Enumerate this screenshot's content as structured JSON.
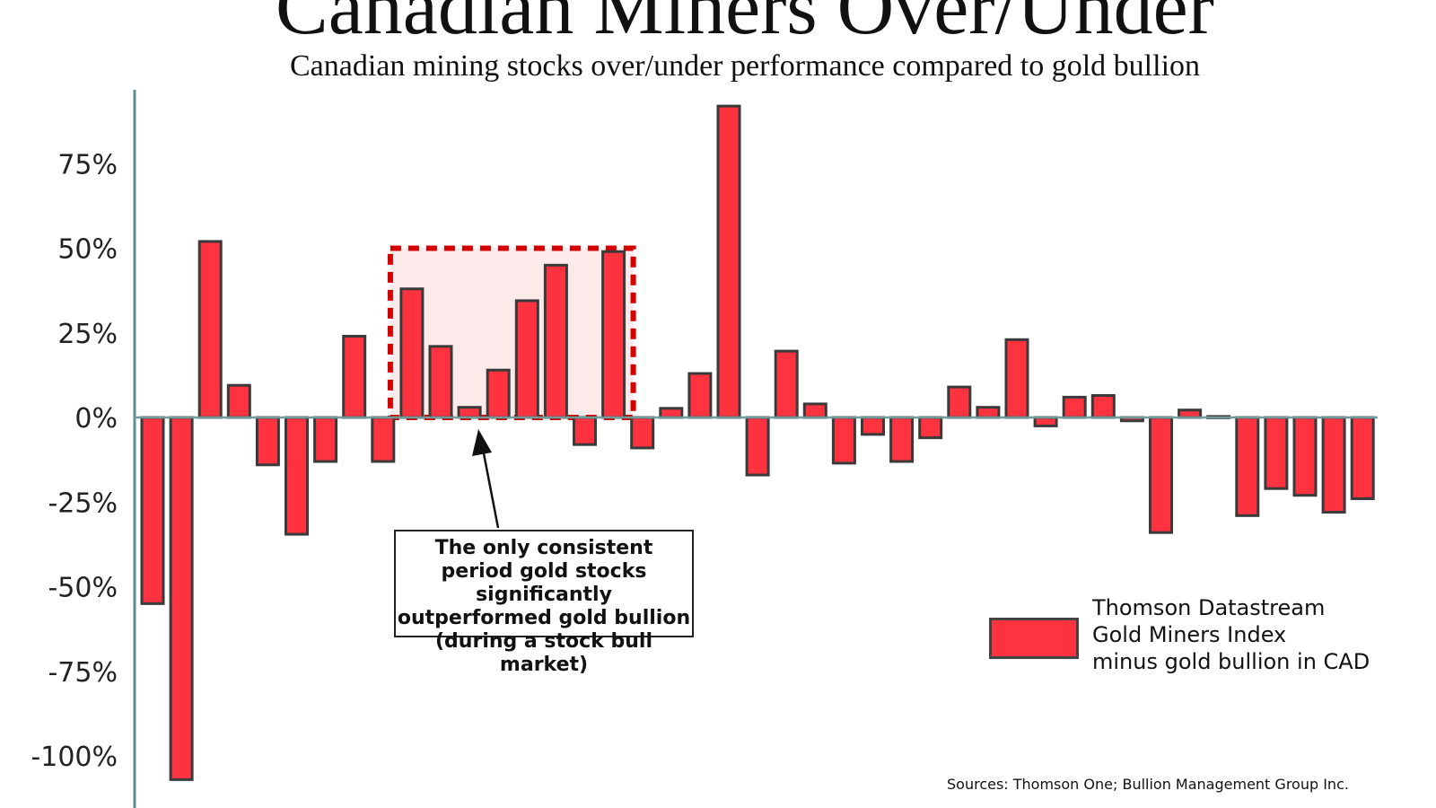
{
  "chart_data": {
    "type": "bar",
    "title": "Canadian Miners Over/Under",
    "subtitle": "Canadian mining stocks over/under performance compared to gold bullion",
    "xlabel": "",
    "ylabel": "",
    "ylim": [
      -110,
      95
    ],
    "yticks": [
      75,
      50,
      25,
      0,
      -25,
      -50,
      -75,
      -100
    ],
    "ytick_labels": [
      "75%",
      "50%",
      "25%",
      "0%",
      "-25%",
      "-50%",
      "-75%",
      "-100%"
    ],
    "grid": false,
    "legend_position": "bottom-right",
    "series": [
      {
        "name": "Thomson Datastream Gold Miners Index minus gold bullion in CAD",
        "color": "#ff3340",
        "values": [
          -55,
          -107,
          52,
          9.5,
          -14,
          -34.5,
          -13,
          24,
          -13,
          38,
          21,
          3,
          14,
          34.5,
          45,
          -8,
          49,
          -9,
          2.7,
          13,
          92,
          -17,
          19.6,
          4,
          -13.5,
          -5,
          -13,
          -6,
          9,
          3,
          23,
          -2.5,
          6,
          6.5,
          -1,
          -34,
          2.2,
          0.3,
          -29,
          -21,
          -23,
          -28,
          -24
        ]
      }
    ],
    "highlight_range": {
      "from_index": 9,
      "to_index": 16,
      "color": "#d40000"
    },
    "annotation": "The only consistent period gold stocks significantly outperformed gold bullion (during a stock bull market)",
    "legend_lines": [
      "Thomson Datastream",
      "Gold Miners Index",
      "minus gold bullion in CAD"
    ],
    "source": "Sources: Thomson One; Bullion Management Group Inc."
  }
}
